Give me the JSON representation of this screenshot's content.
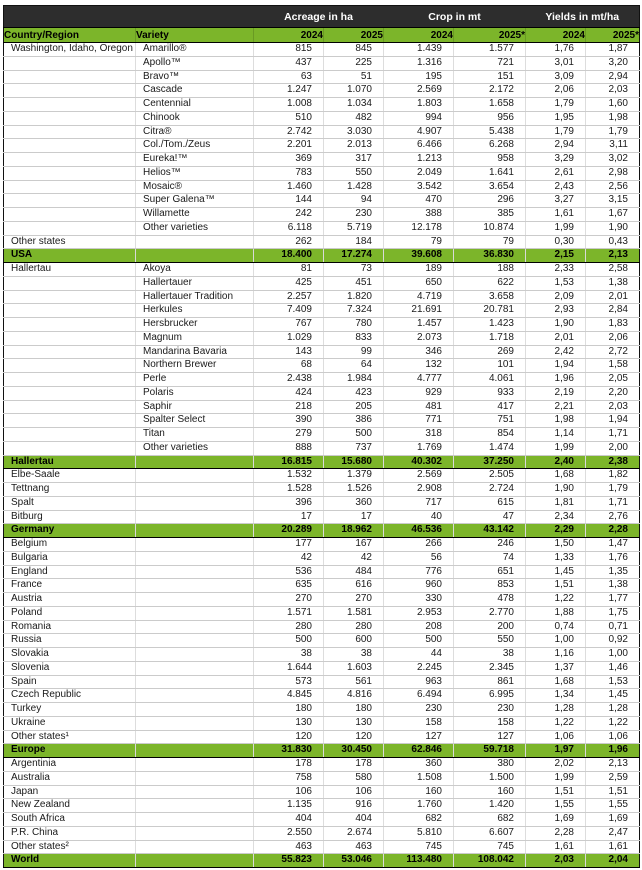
{
  "colors": {
    "header_bg": "#2d2d2d",
    "header_text": "#ffffff",
    "accent_green": "#7cb52a",
    "body_text": "#1a1a1a",
    "row_border": "#cbcbcb"
  },
  "table": {
    "group_headers": [
      {
        "label": "Acreage in ha"
      },
      {
        "label": "Crop in mt"
      },
      {
        "label": "Yields in mt/ha"
      }
    ],
    "col_headers": [
      "Country/Region",
      "Variety",
      "2024",
      "2025",
      "2024",
      "2025*",
      "2024",
      "2025*"
    ],
    "rows": [
      {
        "type": "data",
        "region": "Washington, Idaho, Oregon",
        "variety": "Amarillo®",
        "values": [
          "815",
          "845",
          "1.439",
          "1.577",
          "1,76",
          "1,87"
        ]
      },
      {
        "type": "data",
        "region": "",
        "variety": "Apollo™",
        "values": [
          "437",
          "225",
          "1.316",
          "721",
          "3,01",
          "3,20"
        ]
      },
      {
        "type": "data",
        "region": "",
        "variety": "Bravo™",
        "values": [
          "63",
          "51",
          "195",
          "151",
          "3,09",
          "2,94"
        ]
      },
      {
        "type": "data",
        "region": "",
        "variety": "Cascade",
        "values": [
          "1.247",
          "1.070",
          "2.569",
          "2.172",
          "2,06",
          "2,03"
        ]
      },
      {
        "type": "data",
        "region": "",
        "variety": "Centennial",
        "values": [
          "1.008",
          "1.034",
          "1.803",
          "1.658",
          "1,79",
          "1,60"
        ]
      },
      {
        "type": "data",
        "region": "",
        "variety": "Chinook",
        "values": [
          "510",
          "482",
          "994",
          "956",
          "1,95",
          "1,98"
        ]
      },
      {
        "type": "data",
        "region": "",
        "variety": "Citra®",
        "values": [
          "2.742",
          "3.030",
          "4.907",
          "5.438",
          "1,79",
          "1,79"
        ]
      },
      {
        "type": "data",
        "region": "",
        "variety": "Col./Tom./Zeus",
        "values": [
          "2.201",
          "2.013",
          "6.466",
          "6.268",
          "2,94",
          "3,11"
        ]
      },
      {
        "type": "data",
        "region": "",
        "variety": "Eureka!™",
        "values": [
          "369",
          "317",
          "1.213",
          "958",
          "3,29",
          "3,02"
        ]
      },
      {
        "type": "data",
        "region": "",
        "variety": "Helios™",
        "values": [
          "783",
          "550",
          "2.049",
          "1.641",
          "2,61",
          "2,98"
        ]
      },
      {
        "type": "data",
        "region": "",
        "variety": "Mosaic®",
        "values": [
          "1.460",
          "1.428",
          "3.542",
          "3.654",
          "2,43",
          "2,56"
        ]
      },
      {
        "type": "data",
        "region": "",
        "variety": "Super Galena™",
        "values": [
          "144",
          "94",
          "470",
          "296",
          "3,27",
          "3,15"
        ]
      },
      {
        "type": "data",
        "region": "",
        "variety": "Willamette",
        "values": [
          "242",
          "230",
          "388",
          "385",
          "1,61",
          "1,67"
        ]
      },
      {
        "type": "data",
        "region": "",
        "variety": "Other varieties",
        "values": [
          "6.118",
          "5.719",
          "12.178",
          "10.874",
          "1,99",
          "1,90"
        ]
      },
      {
        "type": "data",
        "region": "Other states",
        "variety": "",
        "values": [
          "262",
          "184",
          "79",
          "79",
          "0,30",
          "0,43"
        ]
      },
      {
        "type": "total",
        "region": "USA",
        "variety": "",
        "values": [
          "18.400",
          "17.274",
          "39.608",
          "36.830",
          "2,15",
          "2,13"
        ]
      },
      {
        "type": "data",
        "region": "Hallertau",
        "variety": "Akoya",
        "values": [
          "81",
          "73",
          "189",
          "188",
          "2,33",
          "2,58"
        ]
      },
      {
        "type": "data",
        "region": "",
        "variety": "Hallertauer",
        "values": [
          "425",
          "451",
          "650",
          "622",
          "1,53",
          "1,38"
        ]
      },
      {
        "type": "data",
        "region": "",
        "variety": "Hallertauer Tradition",
        "values": [
          "2.257",
          "1.820",
          "4.719",
          "3.658",
          "2,09",
          "2,01"
        ]
      },
      {
        "type": "data",
        "region": "",
        "variety": "Herkules",
        "values": [
          "7.409",
          "7.324",
          "21.691",
          "20.781",
          "2,93",
          "2,84"
        ]
      },
      {
        "type": "data",
        "region": "",
        "variety": "Hersbrucker",
        "values": [
          "767",
          "780",
          "1.457",
          "1.423",
          "1,90",
          "1,83"
        ]
      },
      {
        "type": "data",
        "region": "",
        "variety": "Magnum",
        "values": [
          "1.029",
          "833",
          "2.073",
          "1.718",
          "2,01",
          "2,06"
        ]
      },
      {
        "type": "data",
        "region": "",
        "variety": "Mandarina Bavaria",
        "values": [
          "143",
          "99",
          "346",
          "269",
          "2,42",
          "2,72"
        ]
      },
      {
        "type": "data",
        "region": "",
        "variety": "Northern Brewer",
        "values": [
          "68",
          "64",
          "132",
          "101",
          "1,94",
          "1,58"
        ]
      },
      {
        "type": "data",
        "region": "",
        "variety": "Perle",
        "values": [
          "2.438",
          "1.984",
          "4.777",
          "4.061",
          "1,96",
          "2,05"
        ]
      },
      {
        "type": "data",
        "region": "",
        "variety": "Polaris",
        "values": [
          "424",
          "423",
          "929",
          "933",
          "2,19",
          "2,20"
        ]
      },
      {
        "type": "data",
        "region": "",
        "variety": "Saphir",
        "values": [
          "218",
          "205",
          "481",
          "417",
          "2,21",
          "2,03"
        ]
      },
      {
        "type": "data",
        "region": "",
        "variety": "Spalter Select",
        "values": [
          "390",
          "386",
          "771",
          "751",
          "1,98",
          "1,94"
        ]
      },
      {
        "type": "data",
        "region": "",
        "variety": "Titan",
        "values": [
          "279",
          "500",
          "318",
          "854",
          "1,14",
          "1,71"
        ]
      },
      {
        "type": "data",
        "region": "",
        "variety": "Other varieties",
        "values": [
          "888",
          "737",
          "1.769",
          "1.474",
          "1,99",
          "2,00"
        ]
      },
      {
        "type": "total",
        "region": "Hallertau",
        "variety": "",
        "values": [
          "16.815",
          "15.680",
          "40.302",
          "37.250",
          "2,40",
          "2,38"
        ]
      },
      {
        "type": "data",
        "region": "Elbe-Saale",
        "variety": "",
        "values": [
          "1.532",
          "1.379",
          "2.569",
          "2.505",
          "1,68",
          "1,82"
        ]
      },
      {
        "type": "data",
        "region": "Tettnang",
        "variety": "",
        "values": [
          "1.528",
          "1.526",
          "2.908",
          "2.724",
          "1,90",
          "1,79"
        ]
      },
      {
        "type": "data",
        "region": "Spalt",
        "variety": "",
        "values": [
          "396",
          "360",
          "717",
          "615",
          "1,81",
          "1,71"
        ]
      },
      {
        "type": "data",
        "region": "Bitburg",
        "variety": "",
        "values": [
          "17",
          "17",
          "40",
          "47",
          "2,34",
          "2,76"
        ]
      },
      {
        "type": "total",
        "region": "Germany",
        "variety": "",
        "values": [
          "20.289",
          "18.962",
          "46.536",
          "43.142",
          "2,29",
          "2,28"
        ]
      },
      {
        "type": "data",
        "region": "Belgium",
        "variety": "",
        "values": [
          "177",
          "167",
          "266",
          "246",
          "1,50",
          "1,47"
        ]
      },
      {
        "type": "data",
        "region": "Bulgaria",
        "variety": "",
        "values": [
          "42",
          "42",
          "56",
          "74",
          "1,33",
          "1,76"
        ]
      },
      {
        "type": "data",
        "region": "England",
        "variety": "",
        "values": [
          "536",
          "484",
          "776",
          "651",
          "1,45",
          "1,35"
        ]
      },
      {
        "type": "data",
        "region": "France",
        "variety": "",
        "values": [
          "635",
          "616",
          "960",
          "853",
          "1,51",
          "1,38"
        ]
      },
      {
        "type": "data",
        "region": "Austria",
        "variety": "",
        "values": [
          "270",
          "270",
          "330",
          "478",
          "1,22",
          "1,77"
        ]
      },
      {
        "type": "data",
        "region": "Poland",
        "variety": "",
        "values": [
          "1.571",
          "1.581",
          "2.953",
          "2.770",
          "1,88",
          "1,75"
        ]
      },
      {
        "type": "data",
        "region": "Romania",
        "variety": "",
        "values": [
          "280",
          "280",
          "208",
          "200",
          "0,74",
          "0,71"
        ]
      },
      {
        "type": "data",
        "region": "Russia",
        "variety": "",
        "values": [
          "500",
          "600",
          "500",
          "550",
          "1,00",
          "0,92"
        ]
      },
      {
        "type": "data",
        "region": "Slovakia",
        "variety": "",
        "values": [
          "38",
          "38",
          "44",
          "38",
          "1,16",
          "1,00"
        ]
      },
      {
        "type": "data",
        "region": "Slovenia",
        "variety": "",
        "values": [
          "1.644",
          "1.603",
          "2.245",
          "2.345",
          "1,37",
          "1,46"
        ]
      },
      {
        "type": "data",
        "region": "Spain",
        "variety": "",
        "values": [
          "573",
          "561",
          "963",
          "861",
          "1,68",
          "1,53"
        ]
      },
      {
        "type": "data",
        "region": "Czech Republic",
        "variety": "",
        "values": [
          "4.845",
          "4.816",
          "6.494",
          "6.995",
          "1,34",
          "1,45"
        ]
      },
      {
        "type": "data",
        "region": "Turkey",
        "variety": "",
        "values": [
          "180",
          "180",
          "230",
          "230",
          "1,28",
          "1,28"
        ]
      },
      {
        "type": "data",
        "region": "Ukraine",
        "variety": "",
        "values": [
          "130",
          "130",
          "158",
          "158",
          "1,22",
          "1,22"
        ]
      },
      {
        "type": "data",
        "region": "Other states¹",
        "variety": "",
        "values": [
          "120",
          "120",
          "127",
          "127",
          "1,06",
          "1,06"
        ]
      },
      {
        "type": "total",
        "region": "Europe",
        "variety": "",
        "values": [
          "31.830",
          "30.450",
          "62.846",
          "59.718",
          "1,97",
          "1,96"
        ]
      },
      {
        "type": "data",
        "region": "Argentinia",
        "variety": "",
        "values": [
          "178",
          "178",
          "360",
          "380",
          "2,02",
          "2,13"
        ]
      },
      {
        "type": "data",
        "region": "Australia",
        "variety": "",
        "values": [
          "758",
          "580",
          "1.508",
          "1.500",
          "1,99",
          "2,59"
        ]
      },
      {
        "type": "data",
        "region": "Japan",
        "variety": "",
        "values": [
          "106",
          "106",
          "160",
          "160",
          "1,51",
          "1,51"
        ]
      },
      {
        "type": "data",
        "region": "New Zealand",
        "variety": "",
        "values": [
          "1.135",
          "916",
          "1.760",
          "1.420",
          "1,55",
          "1,55"
        ]
      },
      {
        "type": "data",
        "region": "South Africa",
        "variety": "",
        "values": [
          "404",
          "404",
          "682",
          "682",
          "1,69",
          "1,69"
        ]
      },
      {
        "type": "data",
        "region": "P.R. China",
        "variety": "",
        "values": [
          "2.550",
          "2.674",
          "5.810",
          "6.607",
          "2,28",
          "2,47"
        ]
      },
      {
        "type": "data",
        "region": "Other states²",
        "variety": "",
        "values": [
          "463",
          "463",
          "745",
          "745",
          "1,61",
          "1,61"
        ]
      },
      {
        "type": "total",
        "region": "World",
        "variety": "",
        "values": [
          "55.823",
          "53.046",
          "113.480",
          "108.042",
          "2,03",
          "2,04"
        ]
      }
    ]
  }
}
